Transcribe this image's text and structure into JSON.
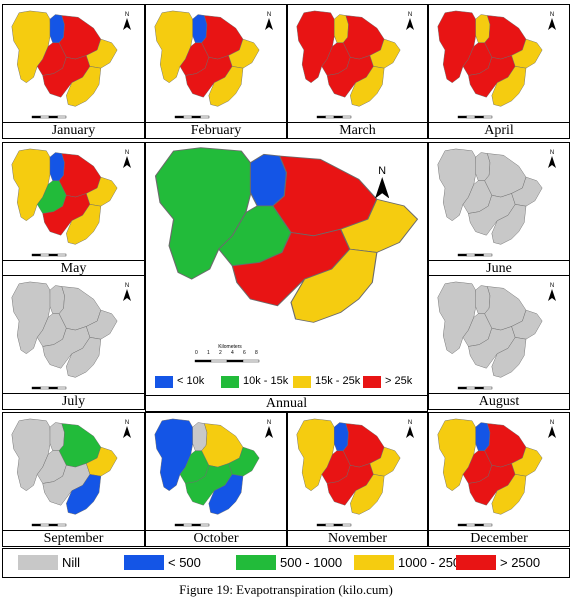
{
  "figure_caption": "Figure 19: Evapotranspiration (kilo.cum)",
  "colors": {
    "nill": "#c8c8c8",
    "low": "#1455e6",
    "mid": "#22bb3a",
    "high": "#f5cc10",
    "top": "#e81414"
  },
  "months": [
    {
      "id": "jan",
      "label": "January",
      "zones": [
        "high",
        "low",
        "top",
        "top",
        "top",
        "high",
        "high"
      ]
    },
    {
      "id": "feb",
      "label": "February",
      "zones": [
        "high",
        "low",
        "top",
        "top",
        "top",
        "high",
        "high"
      ]
    },
    {
      "id": "mar",
      "label": "March",
      "zones": [
        "top",
        "high",
        "top",
        "top",
        "top",
        "high",
        "high"
      ]
    },
    {
      "id": "apr",
      "label": "April",
      "zones": [
        "top",
        "high",
        "top",
        "top",
        "top",
        "high",
        "high"
      ]
    },
    {
      "id": "may",
      "label": "May",
      "zones": [
        "high",
        "low",
        "top",
        "mid",
        "top",
        "high",
        "high"
      ]
    },
    {
      "id": "jun",
      "label": "June",
      "zones": [
        "nill",
        "nill",
        "nill",
        "nill",
        "nill",
        "nill",
        "nill"
      ]
    },
    {
      "id": "jul",
      "label": "July",
      "zones": [
        "nill",
        "nill",
        "nill",
        "nill",
        "nill",
        "nill",
        "nill"
      ]
    },
    {
      "id": "aug",
      "label": "August",
      "zones": [
        "nill",
        "nill",
        "nill",
        "nill",
        "nill",
        "nill",
        "nill"
      ]
    },
    {
      "id": "sep",
      "label": "September",
      "zones": [
        "nill",
        "nill",
        "mid",
        "nill",
        "nill",
        "high",
        "low"
      ]
    },
    {
      "id": "oct",
      "label": "October",
      "zones": [
        "low",
        "nill",
        "high",
        "mid",
        "mid",
        "mid",
        "low"
      ]
    },
    {
      "id": "nov",
      "label": "November",
      "zones": [
        "high",
        "low",
        "top",
        "top",
        "top",
        "high",
        "high"
      ]
    },
    {
      "id": "dec",
      "label": "December",
      "zones": [
        "high",
        "low",
        "top",
        "top",
        "top",
        "high",
        "high"
      ]
    }
  ],
  "annual": {
    "label": "Annual",
    "zones": [
      "mid",
      "low",
      "top",
      "mid",
      "top",
      "high",
      "high"
    ],
    "scale_title": "Kilometers",
    "scale_ticks": [
      "0",
      "1",
      "2",
      "4",
      "6",
      "8"
    ],
    "legend": [
      {
        "color": "low",
        "text": "< 10k"
      },
      {
        "color": "mid",
        "text": "10k - 15k"
      },
      {
        "color": "high",
        "text": "15k - 25k"
      },
      {
        "color": "top",
        "text": "> 25k"
      }
    ]
  },
  "north_label": "N",
  "legend": [
    {
      "color": "nill",
      "text": "Nill"
    },
    {
      "color": "low",
      "text": "< 500"
    },
    {
      "color": "mid",
      "text": "500 - 1000"
    },
    {
      "color": "high",
      "text": "1000 - 2500"
    },
    {
      "color": "top",
      "text": "> 2500"
    }
  ]
}
